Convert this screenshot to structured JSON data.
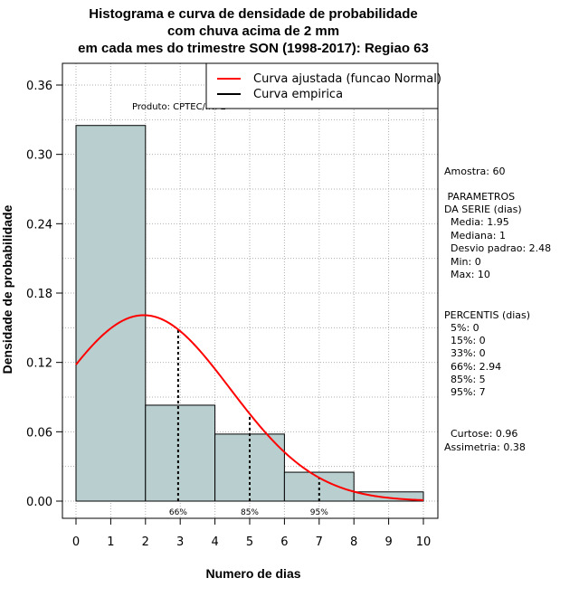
{
  "titles": [
    "Histograma e curva de densidade de probabilidade",
    "com chuva acima de 2 mm",
    "em cada mes do trimestre SON (1998-2017): Regiao 63"
  ],
  "product_label": "Produto: CPTEC/INPE",
  "legend": {
    "fitted": "Curva ajustada (funcao Normal)",
    "empirical": "Curva empirica",
    "fitted_color": "#ff0000",
    "empirical_color": "#000000"
  },
  "stats": {
    "sample": "Amostra: 60",
    "params_title_1": " PARAMETROS",
    "params_title_2": "DA SERIE (dias)",
    "mean": "  Media: 1.95",
    "median": "  Mediana: 1",
    "sd": "  Desvio padrao: 2.48",
    "min": "  Min: 0",
    "max": "  Max: 10",
    "perc_title": "PERCENTIS (dias)",
    "p5": "  5%: 0",
    "p15": "  15%: 0",
    "p33": "  33%: 0",
    "p66": "  66%: 2.94",
    "p85": "  85%: 5",
    "p95": "  95%: 7",
    "kurtosis": "  Curtose: 0.96",
    "skewness": "Assimetria: 0.38"
  },
  "chart_data": {
    "type": "histogram",
    "title": "Histograma e curva de densidade de probabilidade com chuva acima de 2 mm em cada mes do trimestre SON (1998-2017): Regiao 63",
    "xlabel": "Numero de dias",
    "ylabel": "Densidade de probabilidade",
    "xlim": [
      0,
      10
    ],
    "ylim": [
      0,
      0.36
    ],
    "xticks": [
      "0",
      "1",
      "2",
      "3",
      "4",
      "5",
      "6",
      "7",
      "8",
      "9",
      "10"
    ],
    "yticks": [
      "0.00",
      "0.06",
      "0.12",
      "0.18",
      "0.24",
      "0.30",
      "0.36"
    ],
    "bins": [
      {
        "x0": 0,
        "x1": 2,
        "density": 0.325
      },
      {
        "x0": 2,
        "x1": 4,
        "density": 0.083
      },
      {
        "x0": 4,
        "x1": 6,
        "density": 0.058
      },
      {
        "x0": 6,
        "x1": 8,
        "density": 0.025
      },
      {
        "x0": 8,
        "x1": 10,
        "density": 0.008
      }
    ],
    "bar_color": "#b8cecf",
    "normal_fit": {
      "mean": 1.95,
      "sd": 2.48,
      "color": "#ff0000"
    },
    "percentile_lines": [
      {
        "x": 2.94,
        "label": "66%"
      },
      {
        "x": 5,
        "label": "85%"
      },
      {
        "x": 7,
        "label": "95%"
      }
    ],
    "grid": true
  }
}
